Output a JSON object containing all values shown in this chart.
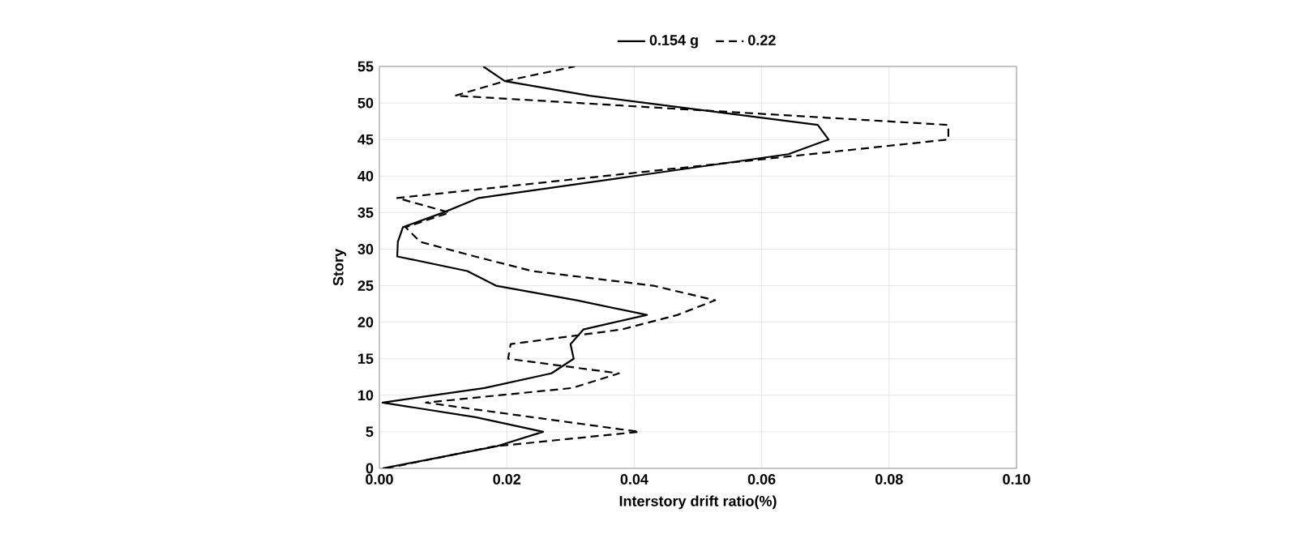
{
  "chart_data": {
    "type": "line",
    "xlabel": "Interstory drift ratio(%)",
    "ylabel": "Story",
    "xlim": [
      0,
      0.1
    ],
    "ylim": [
      0,
      55
    ],
    "xticks": [
      {
        "value": 0,
        "label": "0.00"
      },
      {
        "value": 0.02,
        "label": "0.02"
      },
      {
        "value": 0.04,
        "label": "0.04"
      },
      {
        "value": 0.06,
        "label": "0.06"
      },
      {
        "value": 0.08,
        "label": "0.08"
      },
      {
        "value": 0.1,
        "label": "0.10"
      }
    ],
    "yticks": [
      0,
      5,
      10,
      15,
      20,
      25,
      30,
      35,
      40,
      45,
      50,
      55
    ],
    "grid": true,
    "legend": "top",
    "marker": "none",
    "series": [
      {
        "name": "0.154 g",
        "color": "#000000",
        "line_style": "solid",
        "x": [
          0.0005,
          0.0183,
          0.0257,
          0.0151,
          0.0005,
          0.0165,
          0.027,
          0.0305,
          0.03,
          0.032,
          0.042,
          0.031,
          0.0183,
          0.0138,
          0.0028,
          0.0029,
          0.0037,
          0.01,
          0.0156,
          0.04,
          0.0642,
          0.0705,
          0.0688,
          0.033,
          0.0197,
          0.0163
        ],
        "values": [
          0,
          3,
          5,
          7,
          9,
          11,
          13,
          15,
          17,
          19,
          21,
          23,
          25,
          27,
          29,
          31,
          33,
          35,
          37,
          40,
          43,
          45,
          47,
          51,
          53,
          55
        ]
      },
      {
        "name": "0.22",
        "color": "#000000",
        "line_style": "dashed",
        "x": [
          0.001,
          0.018,
          0.0408,
          0.024,
          0.0073,
          0.0303,
          0.0376,
          0.0202,
          0.0206,
          0.038,
          0.0468,
          0.0527,
          0.043,
          0.024,
          0.015,
          0.0064,
          0.0041,
          0.011,
          0.0028,
          0.0893,
          0.0893,
          0.0119,
          0.0197,
          0.0307
        ],
        "values": [
          0,
          3,
          5,
          7,
          9,
          11,
          13,
          15,
          17,
          19,
          21,
          23,
          25,
          27,
          29,
          31,
          33,
          35,
          37,
          45,
          47,
          51,
          53,
          55
        ]
      }
    ]
  }
}
